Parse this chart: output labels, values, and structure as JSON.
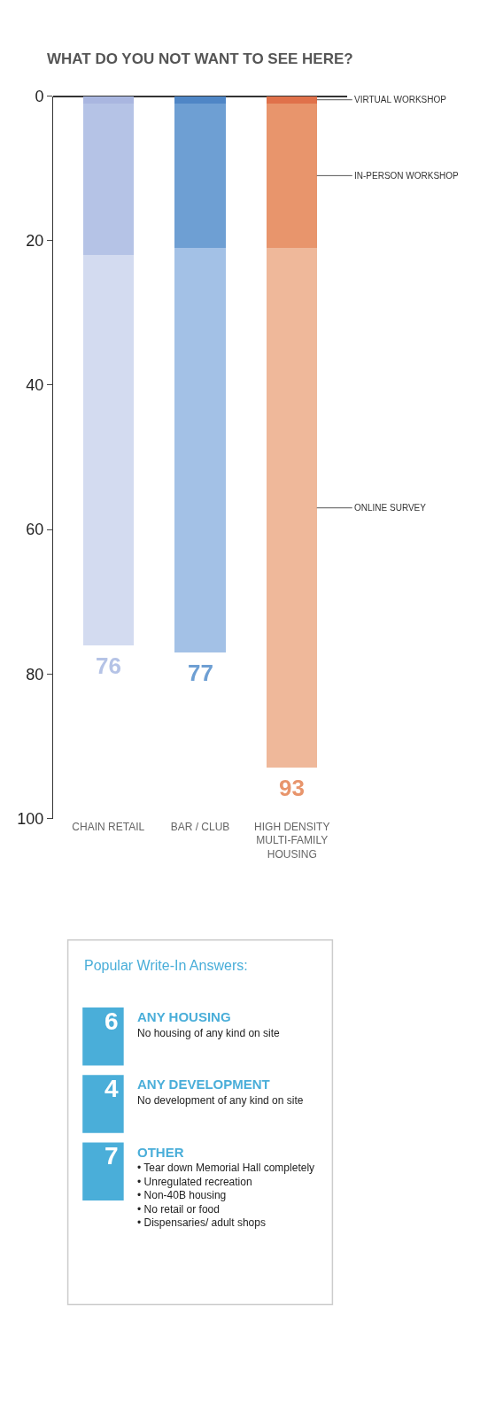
{
  "chart_data": [
    {
      "type": "bar",
      "title": "WHAT DO YOU NOT WANT TO SEE HERE?",
      "stacked": true,
      "categories": [
        "CHAIN RETAIL",
        "BAR / CLUB",
        "HIGH DENSITY MULTI-FAMILY HOUSING"
      ],
      "series": [
        {
          "name": "VIRTUAL WORKSHOP",
          "colors": [
            "#a9b6e0",
            "#4f86c6",
            "#e0714a"
          ],
          "values": [
            1,
            1,
            1
          ]
        },
        {
          "name": "IN-PERSON WORKSHOP",
          "colors": [
            "#b5c3e6",
            "#6e9fd3",
            "#e8956c"
          ],
          "values": [
            21,
            20,
            20
          ]
        },
        {
          "name": "ONLINE SURVEY",
          "colors": [
            "#d3dbf0",
            "#a3c1e6",
            "#efb89a"
          ],
          "values": [
            54,
            56,
            72
          ]
        }
      ],
      "totals": [
        "76",
        "77",
        "93"
      ],
      "ylim": [
        100,
        0
      ],
      "yticks": [
        0,
        20,
        40,
        60,
        80,
        100
      ],
      "legend": false
    },
    {
      "type": "other",
      "title": "Popular Write-In Answers:",
      "color": "#4aaed9",
      "categories": [
        "ANY HOUSING",
        "ANY DEVELOPMENT",
        "OTHER"
      ],
      "values": [
        6,
        4,
        7
      ],
      "data_labels": true,
      "annotations": [
        "No housing of any kind on site",
        "No development of any kind on site",
        "• Tear down Memorial Hall completely",
        "• Unregulated recreation",
        "• Non-40B housing",
        "• No retail or food",
        "• Dispensaries/ adult shops"
      ]
    }
  ]
}
